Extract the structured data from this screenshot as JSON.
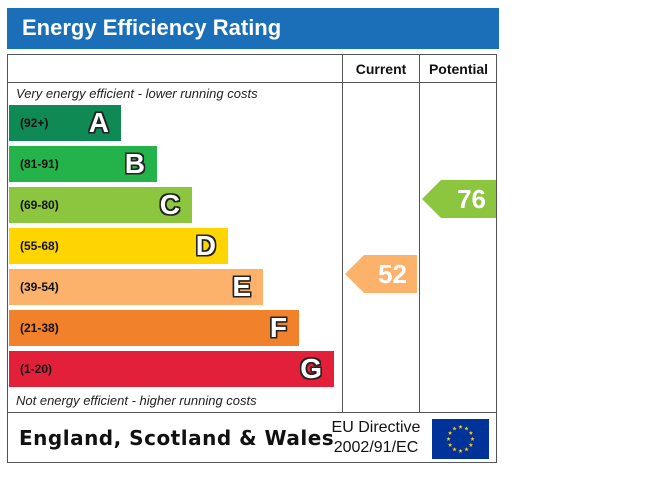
{
  "title": "Energy Efficiency Rating",
  "columns": {
    "current": "Current",
    "potential": "Potential"
  },
  "top_note": "Very energy efficient - lower running costs",
  "bottom_note": "Not energy efficient - higher running costs",
  "bands": [
    {
      "range": "(92+)",
      "letter": "A",
      "color": "#0f8a55"
    },
    {
      "range": "(81-91)",
      "letter": "B",
      "color": "#24b24b"
    },
    {
      "range": "(69-80)",
      "letter": "C",
      "color": "#8cc63f"
    },
    {
      "range": "(55-68)",
      "letter": "D",
      "color": "#ffd500"
    },
    {
      "range": "(39-54)",
      "letter": "E",
      "color": "#fcb26b"
    },
    {
      "range": "(21-38)",
      "letter": "F",
      "color": "#f2812b"
    },
    {
      "range": "(1-20)",
      "letter": "G",
      "color": "#e2203a"
    }
  ],
  "current": {
    "value": "52",
    "band": "E",
    "color": "#fcb26b"
  },
  "potential": {
    "value": "76",
    "band": "C",
    "color": "#8cc63f"
  },
  "footer": {
    "region": "England, Scotland & Wales",
    "directive_line1": "EU Directive",
    "directive_line2": "2002/91/EC",
    "flag_icon": "eu-flag-icon"
  },
  "colors": {
    "title_bar": "#1a6fb8"
  }
}
